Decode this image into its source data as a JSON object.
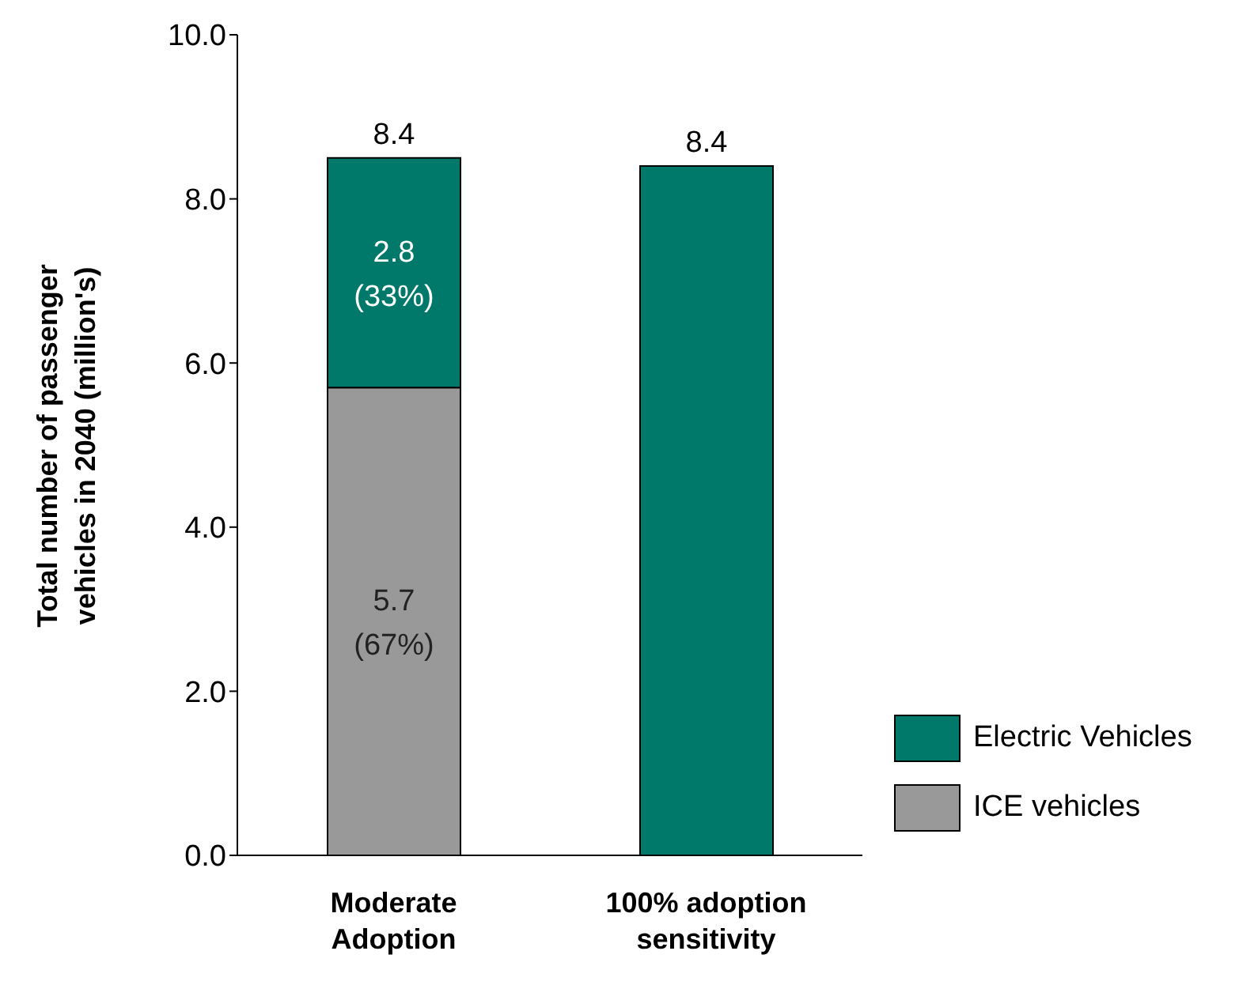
{
  "chart_data": {
    "type": "bar",
    "stacked": true,
    "ylabel": "Total number of passenger vehicles in 2040 (million's)",
    "categories": [
      "Moderate Adoption",
      "100% adoption sensitivity"
    ],
    "series": [
      {
        "name": "ICE vehicles",
        "color": "#999999",
        "values": [
          5.7,
          null
        ],
        "value_labels": [
          "5.7 (67%)",
          null
        ]
      },
      {
        "name": "Electric Vehicles",
        "color": "#00796b",
        "values": [
          2.8,
          8.4
        ],
        "value_labels": [
          "2.8 (33%)",
          null
        ]
      }
    ],
    "totals": [
      "8.4",
      "8.4"
    ],
    "ylim": [
      0,
      10
    ],
    "yticks": [
      {
        "value": 0,
        "label": "0.0"
      },
      {
        "value": 2,
        "label": "2.0"
      },
      {
        "value": 4,
        "label": "4.0"
      },
      {
        "value": 6,
        "label": "6.0"
      },
      {
        "value": 8,
        "label": "8.0"
      },
      {
        "value": 10,
        "label": "10.0"
      }
    ],
    "grid": false,
    "legend": "right"
  }
}
